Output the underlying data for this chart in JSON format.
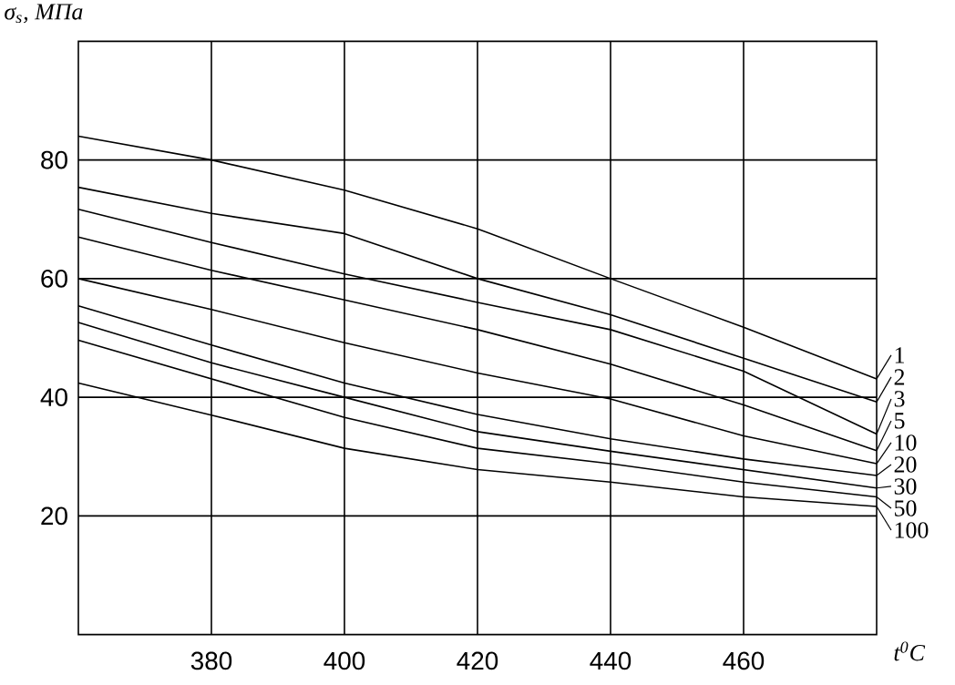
{
  "chart_data": {
    "type": "line",
    "xlabel": "t$^{0}$C",
    "ylabel": "σ$_{s}$, МПа",
    "x": [
      360,
      380,
      400,
      420,
      440,
      460,
      480
    ],
    "xlim": [
      360,
      480
    ],
    "ylim": [
      0,
      100
    ],
    "xticks": [
      380,
      400,
      420,
      440,
      460
    ],
    "yticks": [
      20,
      40,
      60,
      80
    ],
    "grid": true,
    "legend": "right",
    "series": [
      {
        "name": "1",
        "color": "#000000",
        "values": [
          84,
          80,
          74.9,
          68.4,
          60,
          51.8,
          43.1
        ]
      },
      {
        "name": "2",
        "color": "#000000",
        "values": [
          75.4,
          71,
          67.6,
          60,
          53.9,
          46.6,
          39.2
        ]
      },
      {
        "name": "3",
        "color": "#000000",
        "values": [
          71.7,
          66.1,
          60.8,
          56,
          51.4,
          44.4,
          33.8
        ]
      },
      {
        "name": "5",
        "color": "#000000",
        "values": [
          67,
          61.4,
          56.4,
          51.4,
          45.6,
          38.7,
          31
        ]
      },
      {
        "name": "10",
        "color": "#000000",
        "values": [
          60,
          54.8,
          49.2,
          44.1,
          39.7,
          33.5,
          28.8
        ]
      },
      {
        "name": "20",
        "color": "#000000",
        "values": [
          55.4,
          48.8,
          42.4,
          37.1,
          33,
          29.6,
          26.8
        ]
      },
      {
        "name": "30",
        "color": "#000000",
        "values": [
          52.6,
          45.8,
          40,
          34.2,
          30.9,
          27.8,
          24.7
        ]
      },
      {
        "name": "50",
        "color": "#000000",
        "values": [
          49.6,
          43.1,
          36.6,
          31.4,
          28.8,
          25.7,
          23.2
        ]
      },
      {
        "name": "100",
        "color": "#000000",
        "values": [
          42.4,
          37,
          31.4,
          27.8,
          25.7,
          23.2,
          21.6
        ]
      }
    ]
  }
}
